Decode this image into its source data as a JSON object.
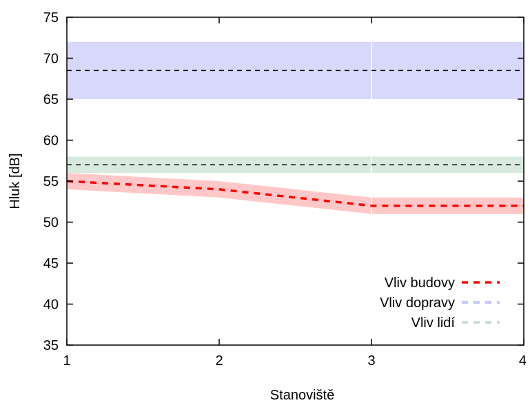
{
  "chart_data": {
    "type": "line",
    "title": "",
    "xlabel": "Stanoviště",
    "ylabel": "Hluk [dB]",
    "xlim": [
      1,
      4
    ],
    "ylim": [
      35,
      75
    ],
    "x_ticks": [
      1,
      2,
      3,
      4
    ],
    "y_ticks": [
      35,
      40,
      45,
      50,
      55,
      60,
      65,
      70,
      75
    ],
    "grid": false,
    "legend_position": "bottom-right",
    "series": [
      {
        "name": "Vliv budovy",
        "color": "#ff0000",
        "band_color": "#ffb0b0",
        "x": [
          1,
          2,
          3,
          4
        ],
        "values": [
          55,
          54,
          52,
          52
        ],
        "band_lower": [
          54,
          53,
          51,
          51
        ],
        "band_upper": [
          56,
          55,
          53,
          53
        ]
      },
      {
        "name": "Vliv dopravy",
        "color": "#c8c8fa",
        "band_color": "#c8c8fa",
        "x": [
          1,
          2,
          3,
          4
        ],
        "values": [
          68.5,
          68.5,
          68.5,
          68.5
        ],
        "band_lower": [
          65,
          65,
          65,
          65
        ],
        "band_upper": [
          72,
          72,
          72,
          72
        ]
      },
      {
        "name": "Vliv lidí",
        "color": "#c8e1d2",
        "band_color": "#c8e1d2",
        "x": [
          1,
          2,
          3,
          4
        ],
        "values": [
          57,
          57,
          57,
          57
        ],
        "band_lower": [
          56,
          56,
          56,
          56
        ],
        "band_upper": [
          58,
          58,
          58,
          58
        ]
      }
    ],
    "reference_lines": [
      {
        "y": 68.5,
        "color": "#000000"
      },
      {
        "y": 57,
        "color": "#000000"
      }
    ]
  }
}
